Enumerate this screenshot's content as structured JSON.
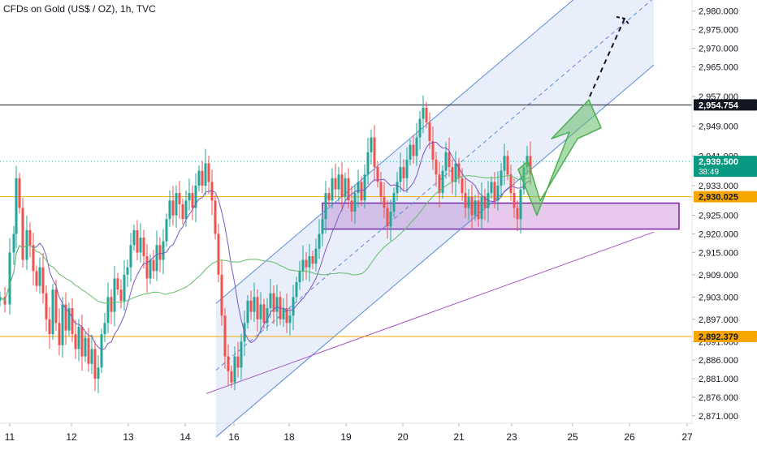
{
  "header": {
    "title": "CFDs on Gold (US$ / OZ), 1h, TVC"
  },
  "chart_data": {
    "type": "candlestick",
    "title": "CFDs on Gold (US$ / OZ), 1h, TVC",
    "symbol": "CFDs on Gold (US$ / OZ)",
    "interval": "1h",
    "source": "TVC",
    "x_axis": {
      "tick_labels": [
        "11",
        "12",
        "13",
        "14",
        "16",
        "18",
        "19",
        "20",
        "21",
        "23",
        "25",
        "26",
        "27"
      ],
      "xlim": [
        0,
        836
      ]
    },
    "y_axis": {
      "tick_labels": [
        "2,980.000",
        "2,975.000",
        "2,970.000",
        "2,965.000",
        "2,957.000",
        "2,949.000",
        "2,941.000",
        "2,933.000",
        "2,925.000",
        "2,920.000",
        "2,915.000",
        "2,909.000",
        "2,903.000",
        "2,897.000",
        "2,891.000",
        "2,886.000",
        "2,881.000",
        "2,876.000",
        "2,871.000"
      ],
      "tick_values": [
        2980,
        2975,
        2970,
        2965,
        2957,
        2949,
        2941,
        2933,
        2925,
        2920,
        2915,
        2909,
        2903,
        2897,
        2891,
        2886,
        2881,
        2876,
        2871
      ],
      "ylim": [
        2869,
        2983
      ]
    },
    "price_labels": [
      {
        "value": 2954.754,
        "text": "2,954.754",
        "style": "dark"
      },
      {
        "value": 2939.5,
        "text": "2,939.500",
        "sub": "38:49",
        "style": "green"
      },
      {
        "value": 2930.025,
        "text": "2,930.025",
        "style": "orange"
      },
      {
        "value": 2892.379,
        "text": "2,892.379",
        "style": "orange"
      }
    ],
    "horizontal_lines": [
      {
        "value": 2954.754,
        "color": "#131722"
      },
      {
        "value": 2930.025,
        "color": "#f7a600"
      },
      {
        "value": 2892.379,
        "color": "#f7a600"
      },
      {
        "value": 2939.5,
        "color": "#22ab94",
        "dotted": true
      }
    ],
    "support_zone": {
      "x": [
        397,
        836
      ],
      "y": [
        2921.3,
        2928.3
      ]
    },
    "channels": [
      {
        "name": "regression",
        "x1": 266,
        "y1": 2883.3,
        "x2": 805,
        "y2": 2983.5,
        "offset": 18.0,
        "color": "#5b8bd9"
      },
      {
        "name": "outer",
        "x1": 254,
        "y1": 2940.0,
        "x2": 805,
        "y2": 2983.5,
        "offset": 63.0,
        "color": "#a855c8"
      }
    ],
    "ohlc_points": [
      [
        0,
        2903
      ],
      [
        6,
        2901
      ],
      [
        12,
        2915
      ],
      [
        17,
        2920
      ],
      [
        20,
        2935
      ],
      [
        24,
        2927
      ],
      [
        28,
        2913
      ],
      [
        33,
        2921
      ],
      [
        37,
        2917
      ],
      [
        41,
        2910
      ],
      [
        45,
        2906
      ],
      [
        49,
        2911
      ],
      [
        53,
        2904
      ],
      [
        57,
        2897
      ],
      [
        61,
        2893
      ],
      [
        65,
        2905
      ],
      [
        69,
        2896
      ],
      [
        73,
        2890
      ],
      [
        77,
        2901
      ],
      [
        81,
        2894
      ],
      [
        85,
        2900
      ],
      [
        89,
        2893
      ],
      [
        93,
        2889
      ],
      [
        97,
        2895
      ],
      [
        101,
        2887
      ],
      [
        105,
        2892
      ],
      [
        109,
        2885
      ],
      [
        113,
        2889
      ],
      [
        117,
        2881
      ],
      [
        121,
        2884
      ],
      [
        125,
        2893
      ],
      [
        129,
        2896
      ],
      [
        133,
        2903
      ],
      [
        137,
        2899
      ],
      [
        141,
        2908
      ],
      [
        145,
        2905
      ],
      [
        149,
        2902
      ],
      [
        153,
        2909
      ],
      [
        157,
        2911
      ],
      [
        161,
        2917
      ],
      [
        165,
        2921
      ],
      [
        169,
        2915
      ],
      [
        173,
        2919
      ],
      [
        177,
        2914
      ],
      [
        181,
        2908
      ],
      [
        185,
        2913
      ],
      [
        189,
        2910
      ],
      [
        193,
        2917
      ],
      [
        197,
        2913
      ],
      [
        201,
        2918
      ],
      [
        205,
        2924
      ],
      [
        209,
        2929
      ],
      [
        213,
        2925
      ],
      [
        217,
        2931
      ],
      [
        221,
        2928
      ],
      [
        225,
        2924
      ],
      [
        229,
        2929
      ],
      [
        233,
        2931
      ],
      [
        237,
        2927
      ],
      [
        241,
        2933
      ],
      [
        245,
        2937
      ],
      [
        249,
        2933
      ],
      [
        253,
        2939
      ],
      [
        257,
        2934
      ],
      [
        261,
        2929
      ],
      [
        265,
        2920
      ],
      [
        269,
        2909
      ],
      [
        273,
        2898
      ],
      [
        277,
        2887
      ],
      [
        281,
        2883
      ],
      [
        285,
        2880
      ],
      [
        289,
        2887
      ],
      [
        293,
        2884
      ],
      [
        297,
        2891
      ],
      [
        301,
        2896
      ],
      [
        305,
        2902
      ],
      [
        309,
        2899
      ],
      [
        313,
        2903
      ],
      [
        317,
        2897
      ],
      [
        321,
        2901
      ],
      [
        325,
        2896
      ],
      [
        329,
        2900
      ],
      [
        333,
        2904
      ],
      [
        337,
        2899
      ],
      [
        341,
        2903
      ],
      [
        345,
        2897
      ],
      [
        349,
        2900
      ],
      [
        353,
        2896
      ],
      [
        357,
        2898
      ],
      [
        361,
        2903
      ],
      [
        365,
        2907
      ],
      [
        369,
        2910
      ],
      [
        373,
        2913
      ],
      [
        377,
        2911
      ],
      [
        381,
        2914
      ],
      [
        385,
        2912
      ],
      [
        389,
        2916
      ],
      [
        393,
        2920
      ],
      [
        397,
        2924
      ],
      [
        401,
        2931
      ],
      [
        405,
        2929
      ],
      [
        409,
        2935
      ],
      [
        413,
        2932
      ],
      [
        417,
        2936
      ],
      [
        421,
        2930
      ],
      [
        425,
        2935
      ],
      [
        429,
        2929
      ],
      [
        433,
        2926
      ],
      [
        437,
        2931
      ],
      [
        441,
        2934
      ],
      [
        445,
        2929
      ],
      [
        449,
        2936
      ],
      [
        453,
        2942
      ],
      [
        457,
        2946
      ],
      [
        461,
        2938
      ],
      [
        465,
        2934
      ],
      [
        469,
        2930
      ],
      [
        473,
        2927
      ],
      [
        477,
        2922
      ],
      [
        481,
        2926
      ],
      [
        485,
        2931
      ],
      [
        489,
        2934
      ],
      [
        493,
        2938
      ],
      [
        497,
        2935
      ],
      [
        501,
        2940
      ],
      [
        505,
        2944
      ],
      [
        509,
        2941
      ],
      [
        513,
        2946
      ],
      [
        517,
        2951
      ],
      [
        521,
        2954
      ],
      [
        525,
        2950
      ],
      [
        529,
        2945
      ],
      [
        533,
        2940
      ],
      [
        537,
        2936
      ],
      [
        541,
        2931
      ],
      [
        545,
        2937
      ],
      [
        549,
        2942
      ],
      [
        553,
        2938
      ],
      [
        557,
        2934
      ],
      [
        561,
        2939
      ],
      [
        565,
        2935
      ],
      [
        569,
        2931
      ],
      [
        573,
        2927
      ],
      [
        577,
        2930
      ],
      [
        581,
        2925
      ],
      [
        585,
        2929
      ],
      [
        589,
        2924
      ],
      [
        593,
        2930
      ],
      [
        597,
        2927
      ],
      [
        601,
        2931
      ],
      [
        605,
        2934
      ],
      [
        609,
        2929
      ],
      [
        613,
        2933
      ],
      [
        617,
        2937
      ],
      [
        621,
        2941
      ],
      [
        625,
        2936
      ],
      [
        629,
        2931
      ],
      [
        633,
        2927
      ],
      [
        637,
        2924
      ],
      [
        641,
        2932
      ],
      [
        645,
        2938
      ],
      [
        649,
        2941
      ],
      [
        653,
        2936
      ]
    ],
    "candle_spacing": 4,
    "projection": {
      "green_path": [
        [
          644,
          2933
        ],
        [
          661,
          2925
        ],
        [
          713,
          2950
        ],
        [
          740,
          2949
        ]
      ],
      "dashed_path": [
        [
          726,
          2957
        ],
        [
          769,
          2978
        ]
      ],
      "dashed_color": "#131722"
    }
  }
}
